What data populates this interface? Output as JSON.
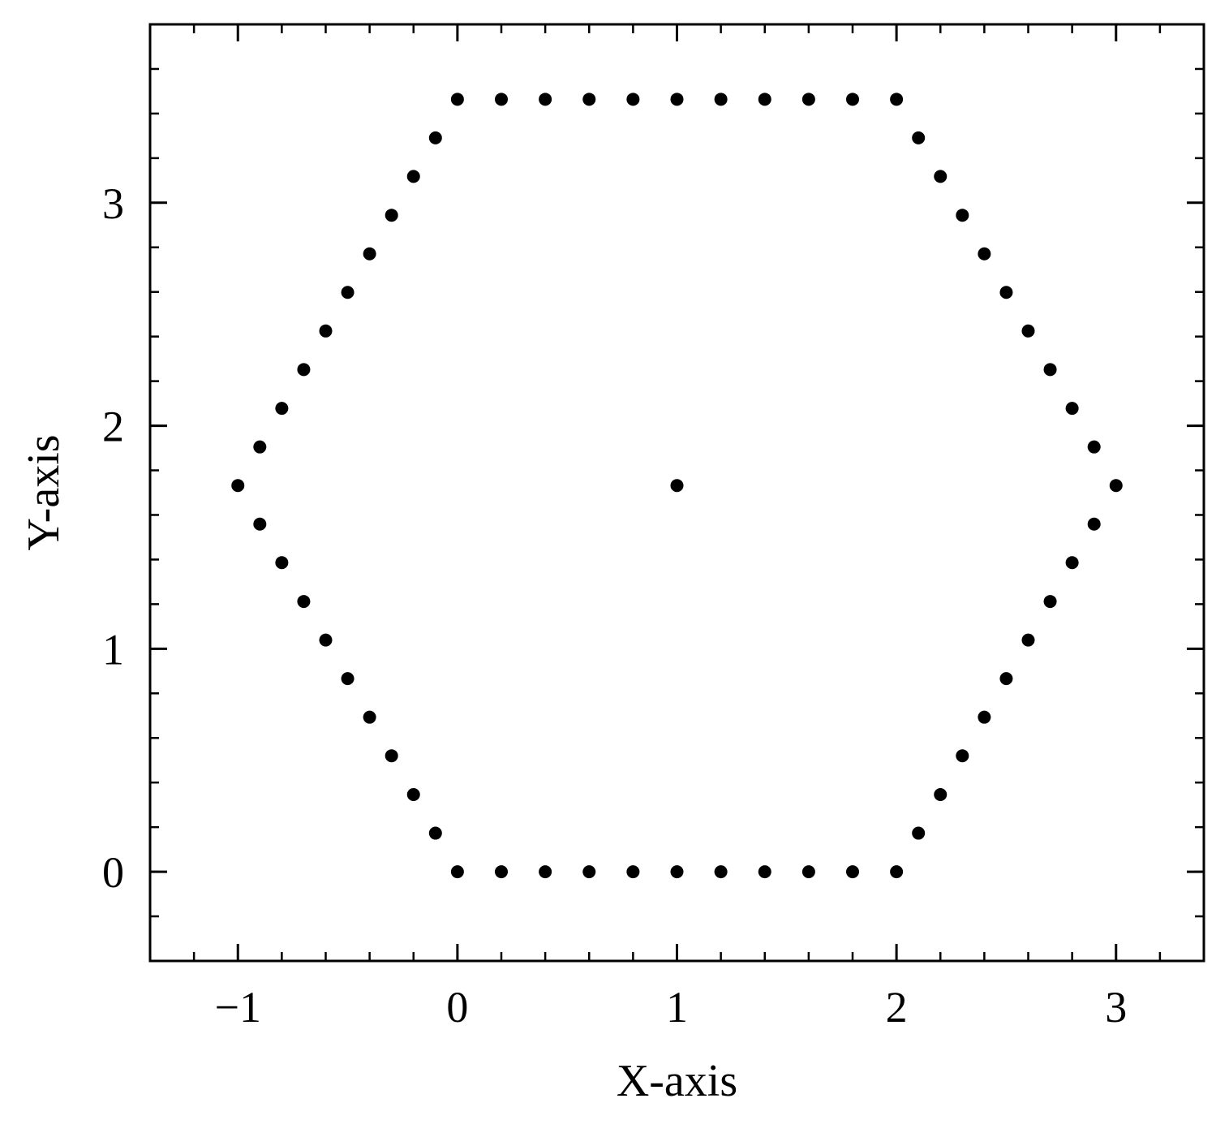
{
  "chart_data": {
    "type": "scatter",
    "title": "",
    "xlabel": "X-axis",
    "ylabel": "Y-axis",
    "xlim": [
      -1.4,
      3.4
    ],
    "ylim": [
      -0.4,
      3.8
    ],
    "x_ticks": [
      {
        "value": -1,
        "label": "−1"
      },
      {
        "value": 0,
        "label": "0"
      },
      {
        "value": 1,
        "label": "1"
      },
      {
        "value": 2,
        "label": "2"
      },
      {
        "value": 3,
        "label": "3"
      }
    ],
    "y_ticks": [
      {
        "value": 0,
        "label": "0"
      },
      {
        "value": 1,
        "label": "1"
      },
      {
        "value": 2,
        "label": "2"
      },
      {
        "value": 3,
        "label": "3"
      }
    ],
    "x_minor_step": 0.2,
    "y_minor_step": 0.2,
    "grid": false,
    "legend": "none",
    "marker_color": "#000000",
    "series": [
      {
        "points": [
          [
            0,
            0
          ],
          [
            0.2,
            0
          ],
          [
            0.4,
            0
          ],
          [
            0.6,
            0
          ],
          [
            0.8,
            0
          ],
          [
            1.0,
            0
          ],
          [
            1.2,
            0
          ],
          [
            1.4,
            0
          ],
          [
            1.6,
            0
          ],
          [
            1.8,
            0
          ],
          [
            2.0,
            0
          ],
          [
            2.1,
            0.173
          ],
          [
            2.2,
            0.346
          ],
          [
            2.3,
            0.52
          ],
          [
            2.4,
            0.693
          ],
          [
            2.5,
            0.866
          ],
          [
            2.6,
            1.039
          ],
          [
            2.7,
            1.212
          ],
          [
            2.8,
            1.386
          ],
          [
            2.9,
            1.559
          ],
          [
            3.0,
            1.732
          ],
          [
            2.9,
            1.905
          ],
          [
            2.8,
            2.078
          ],
          [
            2.7,
            2.252
          ],
          [
            2.6,
            2.425
          ],
          [
            2.5,
            2.598
          ],
          [
            2.4,
            2.771
          ],
          [
            2.3,
            2.944
          ],
          [
            2.2,
            3.118
          ],
          [
            2.1,
            3.291
          ],
          [
            2.0,
            3.464
          ],
          [
            1.8,
            3.464
          ],
          [
            1.6,
            3.464
          ],
          [
            1.4,
            3.464
          ],
          [
            1.2,
            3.464
          ],
          [
            1.0,
            3.464
          ],
          [
            0.8,
            3.464
          ],
          [
            0.6,
            3.464
          ],
          [
            0.4,
            3.464
          ],
          [
            0.2,
            3.464
          ],
          [
            0,
            3.464
          ],
          [
            -0.1,
            3.291
          ],
          [
            -0.2,
            3.118
          ],
          [
            -0.3,
            2.944
          ],
          [
            -0.4,
            2.771
          ],
          [
            -0.5,
            2.598
          ],
          [
            -0.6,
            2.425
          ],
          [
            -0.7,
            2.252
          ],
          [
            -0.8,
            2.078
          ],
          [
            -0.9,
            1.905
          ],
          [
            -1.0,
            1.732
          ],
          [
            -0.9,
            1.559
          ],
          [
            -0.8,
            1.386
          ],
          [
            -0.7,
            1.212
          ],
          [
            -0.6,
            1.039
          ],
          [
            -0.5,
            0.866
          ],
          [
            -0.4,
            0.693
          ],
          [
            -0.3,
            0.52
          ],
          [
            -0.2,
            0.346
          ],
          [
            -0.1,
            0.173
          ],
          [
            1.0,
            1.732
          ]
        ]
      }
    ]
  }
}
